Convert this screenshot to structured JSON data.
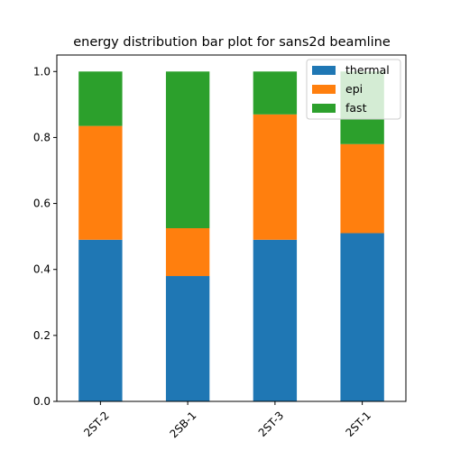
{
  "chart_data": {
    "type": "bar",
    "stacked": true,
    "title": "energy distribution bar plot for sans2d beamline",
    "xlabel": "",
    "ylabel": "",
    "categories": [
      "2ST-2",
      "2SB-1",
      "2ST-3",
      "2ST-1"
    ],
    "series": [
      {
        "name": "thermal",
        "color": "#1f77b4",
        "values": [
          0.49,
          0.38,
          0.49,
          0.51
        ]
      },
      {
        "name": "epi",
        "color": "#ff7f0e",
        "values": [
          0.345,
          0.145,
          0.38,
          0.27
        ]
      },
      {
        "name": "fast",
        "color": "#2ca02c",
        "values": [
          0.165,
          0.475,
          0.13,
          0.22
        ]
      }
    ],
    "ylim": [
      0,
      1.05
    ],
    "yticks": [
      "0.0",
      "0.2",
      "0.4",
      "0.6",
      "0.8",
      "1.0"
    ],
    "ytick_values": [
      0.0,
      0.2,
      0.4,
      0.6,
      0.8,
      1.0
    ],
    "xtick_rotation_deg": 45,
    "grid": false,
    "legend_placement": "top-right"
  }
}
